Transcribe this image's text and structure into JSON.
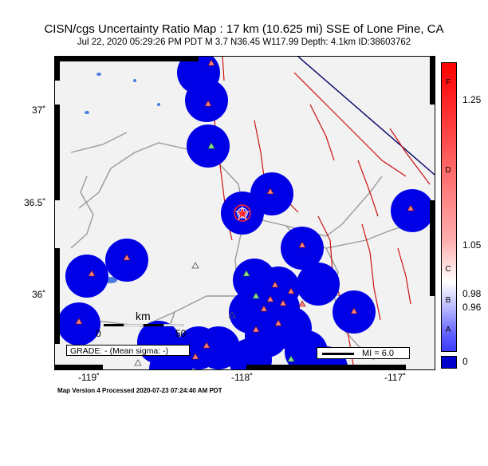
{
  "title": "CISN/cgs Uncertainty Ratio Map : 17 km (10.625 mi) SSE of Lone Pine, CA",
  "subtitle": "Jul 22, 2020 05:29:26 PM PDT   M 3.7   N36.45 W117.99   Depth: 4.1km   ID:38603762",
  "footer": "Map Version 4 Processed 2020-07-23 07:24:40 AM PDT",
  "grade_label": "GRADE: - (Mean sigma: -)",
  "mi_label": "MI = 6.0",
  "scale": {
    "unit": "km",
    "start": "0",
    "end": "50"
  },
  "lat_ticks": [
    {
      "label": "37˚"
    },
    {
      "label": "36.5˚"
    },
    {
      "label": "36˚"
    }
  ],
  "lon_ticks": [
    {
      "label": "-119˚"
    },
    {
      "label": "-118˚"
    },
    {
      "label": "-117˚"
    }
  ],
  "colorbar": {
    "letters": [
      "F",
      "D",
      "C",
      "B",
      "A"
    ],
    "values": [
      "1.25",
      "1.05",
      "0.98",
      "0.96",
      "0"
    ]
  },
  "colors": {
    "station_fill": "#0000e6",
    "fault": "#cc1111",
    "roads": "#999999",
    "water": "#3366cc",
    "epicenter": "#ff2222"
  },
  "icons": [
    "seismic-station-triangle",
    "epicenter-star"
  ]
}
